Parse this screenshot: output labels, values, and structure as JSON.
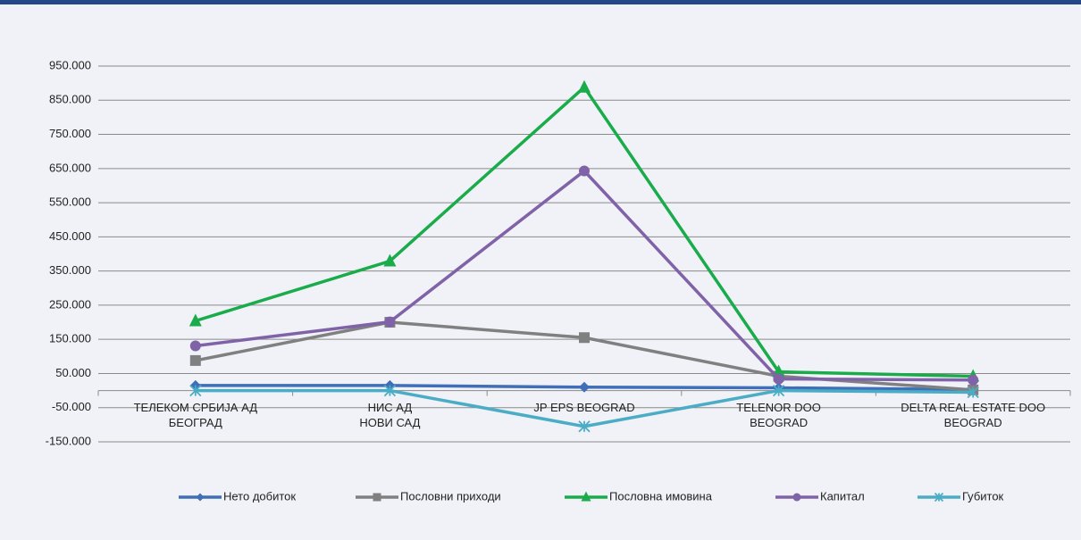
{
  "chart_data": {
    "type": "line",
    "categories": [
      "ТЕЛЕКОМ СРБИЈА АД\nБЕОГРАД",
      "НИС АД\nНОВИ САД",
      "JP EPS BEOGRAD",
      "TELENOR DOO\nBEOGRAD",
      "DELTA REAL ESTATE DOO\nBEOGRAD"
    ],
    "series": [
      {
        "name": "Нето добиток",
        "color": "#3f6fb8",
        "marker": "diamond",
        "values": [
          15000,
          15000,
          10000,
          8000,
          3000
        ]
      },
      {
        "name": "Пословни приходи",
        "color": "#808080",
        "marker": "square",
        "values": [
          88000,
          200000,
          155000,
          42000,
          2000
        ]
      },
      {
        "name": "Пословна имовина",
        "color": "#1aab4a",
        "marker": "triangle",
        "values": [
          204000,
          379000,
          888000,
          55000,
          42000
        ]
      },
      {
        "name": "Капитал",
        "color": "#8062a8",
        "marker": "circle",
        "values": [
          131000,
          201000,
          643000,
          34000,
          31000
        ]
      },
      {
        "name": "Губиток",
        "color": "#4bacc6",
        "marker": "asterisk",
        "values": [
          0,
          0,
          -105000,
          0,
          -5000
        ]
      }
    ],
    "ylim": [
      -150000,
      950000
    ],
    "yticks": [
      {
        "value": -150000,
        "label": "-150.000"
      },
      {
        "value": -50000,
        "label": "-50.000"
      },
      {
        "value": 50000,
        "label": "50.000"
      },
      {
        "value": 150000,
        "label": "150.000"
      },
      {
        "value": 250000,
        "label": "250.000"
      },
      {
        "value": 350000,
        "label": "350.000"
      },
      {
        "value": 450000,
        "label": "450.000"
      },
      {
        "value": 550000,
        "label": "550.000"
      },
      {
        "value": 650000,
        "label": "650.000"
      },
      {
        "value": 750000,
        "label": "750.000"
      },
      {
        "value": 850000,
        "label": "850.000"
      },
      {
        "value": 950000,
        "label": "950.000"
      }
    ],
    "grid": true,
    "legend": "bottom"
  }
}
